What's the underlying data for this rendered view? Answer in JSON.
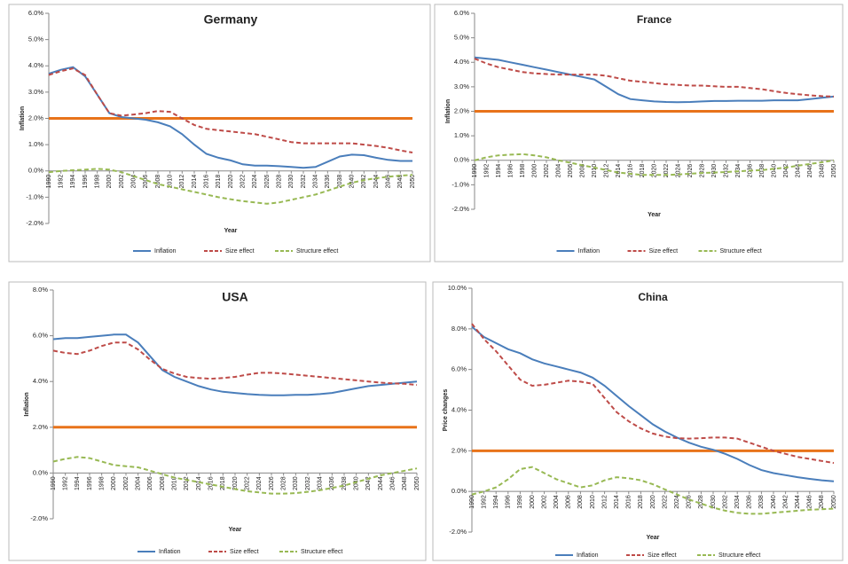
{
  "chart_data": [
    {
      "type": "line",
      "title": "Germany",
      "ylabel": "Inflation",
      "xlabel": "Year",
      "categories": [
        "1990",
        "1992",
        "1994",
        "1996",
        "1998",
        "2000",
        "2002",
        "2004",
        "2006",
        "2008",
        "2010",
        "2012",
        "2014",
        "2016",
        "2018",
        "2020",
        "2022",
        "2024",
        "2026",
        "2028",
        "2030",
        "2032",
        "2034",
        "2036",
        "2038",
        "2040",
        "2042",
        "2044",
        "2046",
        "2048",
        "2050"
      ],
      "ylim": [
        -2,
        6
      ],
      "yticks": [
        {
          "value": -2,
          "label": "-2.0%"
        },
        {
          "value": -1,
          "label": "-1.0%"
        },
        {
          "value": 0,
          "label": "0.0%"
        },
        {
          "value": 1,
          "label": "1.0%"
        },
        {
          "value": 2,
          "label": "2.0%"
        },
        {
          "value": 3,
          "label": "3.0%"
        },
        {
          "value": 4,
          "label": "4.0%"
        },
        {
          "value": 5,
          "label": "5.0%"
        },
        {
          "value": 6,
          "label": "6.0%"
        }
      ],
      "hline": {
        "value": 2,
        "color": "#e8731a"
      },
      "series": [
        {
          "name": "Inflation",
          "color": "#4a7ebb",
          "dash": "solid",
          "values": [
            3.7,
            3.85,
            3.95,
            3.6,
            2.9,
            2.2,
            2.05,
            2.0,
            1.95,
            1.85,
            1.7,
            1.4,
            1.0,
            0.65,
            0.5,
            0.4,
            0.25,
            0.2,
            0.2,
            0.18,
            0.15,
            0.12,
            0.15,
            0.35,
            0.55,
            0.62,
            0.6,
            0.5,
            0.42,
            0.38,
            0.38
          ]
        },
        {
          "name": "Size effect",
          "color": "#be4b48",
          "dash": "dashed",
          "values": [
            3.65,
            3.8,
            3.9,
            3.65,
            2.9,
            2.2,
            2.1,
            2.15,
            2.2,
            2.28,
            2.25,
            2.0,
            1.75,
            1.6,
            1.55,
            1.5,
            1.45,
            1.4,
            1.3,
            1.2,
            1.1,
            1.05,
            1.05,
            1.05,
            1.05,
            1.05,
            1.0,
            0.95,
            0.88,
            0.78,
            0.7
          ]
        },
        {
          "name": "Structure effect",
          "color": "#98b954",
          "dash": "dashed",
          "values": [
            -0.05,
            0.0,
            0.03,
            0.05,
            0.08,
            0.05,
            -0.05,
            -0.2,
            -0.35,
            -0.5,
            -0.6,
            -0.7,
            -0.8,
            -0.9,
            -1.0,
            -1.08,
            -1.15,
            -1.2,
            -1.25,
            -1.2,
            -1.1,
            -1.0,
            -0.9,
            -0.75,
            -0.6,
            -0.45,
            -0.35,
            -0.28,
            -0.22,
            -0.18,
            -0.15
          ]
        }
      ]
    },
    {
      "type": "line",
      "title": "France",
      "ylabel": "Inflation",
      "xlabel": "Year",
      "categories": [
        "1990",
        "1992",
        "1994",
        "1996",
        "1998",
        "2000",
        "2002",
        "2004",
        "2006",
        "2008",
        "2010",
        "2012",
        "2014",
        "2016",
        "2018",
        "2020",
        "2022",
        "2024",
        "2026",
        "2028",
        "2030",
        "2032",
        "2034",
        "2036",
        "2038",
        "2040",
        "2042",
        "2044",
        "2046",
        "2048",
        "2050"
      ],
      "ylim": [
        -2,
        6
      ],
      "yticks": [
        {
          "value": -2,
          "label": "-2.0%"
        },
        {
          "value": -1,
          "label": "-1.0%"
        },
        {
          "value": 0,
          "label": "0.0%"
        },
        {
          "value": 1,
          "label": "1.0%"
        },
        {
          "value": 2,
          "label": "2.0%"
        },
        {
          "value": 3,
          "label": "3.0%"
        },
        {
          "value": 4,
          "label": "4.0%"
        },
        {
          "value": 5,
          "label": "5.0%"
        },
        {
          "value": 6,
          "label": "6.0%"
        }
      ],
      "hline": {
        "value": 2,
        "color": "#e8731a"
      },
      "series": [
        {
          "name": "Inflation",
          "color": "#4a7ebb",
          "dash": "solid",
          "values": [
            4.2,
            4.15,
            4.1,
            4.0,
            3.9,
            3.8,
            3.7,
            3.6,
            3.5,
            3.4,
            3.3,
            3.0,
            2.7,
            2.5,
            2.45,
            2.4,
            2.38,
            2.37,
            2.38,
            2.4,
            2.42,
            2.42,
            2.43,
            2.43,
            2.43,
            2.45,
            2.45,
            2.45,
            2.5,
            2.55,
            2.6
          ]
        },
        {
          "name": "Size effect",
          "color": "#be4b48",
          "dash": "dashed",
          "values": [
            4.15,
            3.95,
            3.8,
            3.7,
            3.6,
            3.55,
            3.52,
            3.5,
            3.5,
            3.5,
            3.5,
            3.45,
            3.35,
            3.25,
            3.2,
            3.15,
            3.1,
            3.08,
            3.05,
            3.05,
            3.02,
            3.0,
            3.0,
            2.95,
            2.9,
            2.82,
            2.75,
            2.7,
            2.65,
            2.62,
            2.6
          ]
        },
        {
          "name": "Structure effect",
          "color": "#98b954",
          "dash": "dashed",
          "values": [
            0.0,
            0.12,
            0.2,
            0.23,
            0.25,
            0.2,
            0.12,
            0.0,
            -0.1,
            -0.2,
            -0.3,
            -0.4,
            -0.5,
            -0.55,
            -0.6,
            -0.6,
            -0.6,
            -0.58,
            -0.55,
            -0.52,
            -0.5,
            -0.48,
            -0.45,
            -0.42,
            -0.4,
            -0.35,
            -0.3,
            -0.22,
            -0.15,
            -0.08,
            0.0
          ]
        }
      ]
    },
    {
      "type": "line",
      "title": "USA",
      "ylabel": "Inflation",
      "xlabel": "Year",
      "categories": [
        "1990",
        "1992",
        "1994",
        "1996",
        "1998",
        "2000",
        "2002",
        "2004",
        "2006",
        "2008",
        "2010",
        "2012",
        "2014",
        "2016",
        "2018",
        "2020",
        "2022",
        "2024",
        "2026",
        "2028",
        "2030",
        "2032",
        "2034",
        "2036",
        "2038",
        "2040",
        "2042",
        "2044",
        "2046",
        "2048",
        "2050"
      ],
      "ylim": [
        -2,
        8
      ],
      "yticks": [
        {
          "value": -2,
          "label": "-2.0%"
        },
        {
          "value": 0,
          "label": "0.0%"
        },
        {
          "value": 2,
          "label": "2.0%"
        },
        {
          "value": 4,
          "label": "4.0%"
        },
        {
          "value": 6,
          "label": "6.0%"
        },
        {
          "value": 8,
          "label": "8.0%"
        }
      ],
      "hline": {
        "value": 2,
        "color": "#e8731a"
      },
      "series": [
        {
          "name": "Inflation",
          "color": "#4a7ebb",
          "dash": "solid",
          "values": [
            5.85,
            5.9,
            5.9,
            5.95,
            6.0,
            6.05,
            6.05,
            5.7,
            5.1,
            4.5,
            4.2,
            4.0,
            3.8,
            3.65,
            3.55,
            3.5,
            3.45,
            3.42,
            3.4,
            3.4,
            3.42,
            3.42,
            3.45,
            3.5,
            3.6,
            3.7,
            3.8,
            3.85,
            3.9,
            3.95,
            4.0
          ]
        },
        {
          "name": "Size effect",
          "color": "#be4b48",
          "dash": "dashed",
          "values": [
            5.35,
            5.25,
            5.2,
            5.35,
            5.55,
            5.7,
            5.7,
            5.4,
            4.95,
            4.55,
            4.35,
            4.2,
            4.15,
            4.12,
            4.15,
            4.2,
            4.3,
            4.38,
            4.38,
            4.35,
            4.3,
            4.25,
            4.2,
            4.15,
            4.1,
            4.05,
            4.0,
            3.95,
            3.92,
            3.9,
            3.85
          ]
        },
        {
          "name": "Structure effect",
          "color": "#98b954",
          "dash": "dashed",
          "values": [
            0.5,
            0.62,
            0.7,
            0.65,
            0.5,
            0.35,
            0.3,
            0.25,
            0.1,
            -0.05,
            -0.2,
            -0.3,
            -0.4,
            -0.5,
            -0.6,
            -0.7,
            -0.8,
            -0.85,
            -0.9,
            -0.9,
            -0.88,
            -0.82,
            -0.75,
            -0.65,
            -0.55,
            -0.4,
            -0.25,
            -0.1,
            0.0,
            0.1,
            0.2
          ]
        }
      ]
    },
    {
      "type": "line",
      "title": "China",
      "ylabel": "Price changes",
      "xlabel": "Year",
      "categories": [
        "1990",
        "1992",
        "1994",
        "1996",
        "1998",
        "2000",
        "2002",
        "2004",
        "2006",
        "2008",
        "2010",
        "2012",
        "2014",
        "2016",
        "2018",
        "2020",
        "2022",
        "2024",
        "2026",
        "2028",
        "2030",
        "2032",
        "2034",
        "2036",
        "2038",
        "2040",
        "2042",
        "2044",
        "2046",
        "2048",
        "2050"
      ],
      "ylim": [
        -2,
        10
      ],
      "yticks": [
        {
          "value": -2,
          "label": "-2.0%"
        },
        {
          "value": 0,
          "label": "0.0%"
        },
        {
          "value": 2,
          "label": "2.0%"
        },
        {
          "value": 4,
          "label": "4.0%"
        },
        {
          "value": 6,
          "label": "6.0%"
        },
        {
          "value": 8,
          "label": "8.0%"
        },
        {
          "value": 10,
          "label": "10.0%"
        }
      ],
      "hline": {
        "value": 2,
        "color": "#e8731a"
      },
      "series": [
        {
          "name": "Inflation",
          "color": "#4a7ebb",
          "dash": "solid",
          "values": [
            8.1,
            7.6,
            7.3,
            7.0,
            6.8,
            6.5,
            6.3,
            6.15,
            6.0,
            5.85,
            5.6,
            5.2,
            4.7,
            4.2,
            3.75,
            3.3,
            2.95,
            2.65,
            2.4,
            2.2,
            2.05,
            1.85,
            1.6,
            1.3,
            1.05,
            0.9,
            0.8,
            0.7,
            0.62,
            0.55,
            0.5
          ]
        },
        {
          "name": "Size effect",
          "color": "#be4b48",
          "dash": "dashed",
          "values": [
            8.25,
            7.5,
            6.9,
            6.2,
            5.5,
            5.2,
            5.25,
            5.35,
            5.45,
            5.4,
            5.3,
            4.6,
            3.9,
            3.45,
            3.1,
            2.85,
            2.7,
            2.62,
            2.6,
            2.62,
            2.65,
            2.65,
            2.6,
            2.4,
            2.2,
            2.0,
            1.85,
            1.7,
            1.6,
            1.5,
            1.4
          ]
        },
        {
          "name": "Structure effect",
          "color": "#98b954",
          "dash": "dashed",
          "values": [
            -0.15,
            0.0,
            0.2,
            0.6,
            1.1,
            1.2,
            0.9,
            0.6,
            0.4,
            0.2,
            0.3,
            0.55,
            0.7,
            0.65,
            0.55,
            0.35,
            0.1,
            -0.15,
            -0.4,
            -0.6,
            -0.8,
            -0.95,
            -1.05,
            -1.1,
            -1.1,
            -1.05,
            -1.0,
            -0.95,
            -0.9,
            -0.88,
            -0.85
          ]
        }
      ]
    }
  ]
}
